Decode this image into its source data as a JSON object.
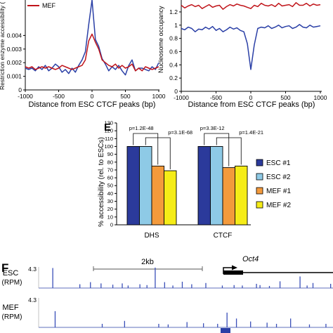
{
  "chart_data": [
    {
      "type": "line",
      "panel": "left-top",
      "xlabel": "Distance from ESC CTCF peaks (bp)",
      "ylabel": "Restriction enzyme accessibility (",
      "xlim": [
        -1000,
        1000
      ],
      "ylim": [
        0,
        0.0066
      ],
      "xticks": [
        "-1000",
        "-500",
        "0",
        "500",
        "1000"
      ],
      "yticks": [
        "0",
        "0.001",
        "0.002",
        "0.003",
        "0.004"
      ],
      "legend": [
        "MEF"
      ],
      "legend_position": "top-left",
      "x": [
        -1000,
        -950,
        -900,
        -850,
        -800,
        -750,
        -700,
        -650,
        -600,
        -550,
        -500,
        -450,
        -400,
        -350,
        -300,
        -250,
        -200,
        -150,
        -100,
        -50,
        0,
        50,
        100,
        150,
        200,
        250,
        300,
        350,
        400,
        450,
        500,
        550,
        600,
        650,
        700,
        750,
        800,
        850,
        900,
        950,
        1000
      ],
      "series": [
        {
          "name": "",
          "color": "#2a3fa6",
          "values": [
            0.0016,
            0.0015,
            0.0016,
            0.0014,
            0.0017,
            0.0015,
            0.0018,
            0.0014,
            0.0016,
            0.0019,
            0.0017,
            0.0013,
            0.0015,
            0.0012,
            0.0016,
            0.0013,
            0.0018,
            0.0022,
            0.0028,
            0.0048,
            0.0066,
            0.0037,
            0.0032,
            0.0023,
            0.0019,
            0.0014,
            0.0017,
            0.0015,
            0.0018,
            0.0014,
            0.0011,
            0.0018,
            0.0022,
            0.0014,
            0.0016,
            0.0016,
            0.0015,
            0.0014,
            0.0017,
            0.0015,
            0.002
          ]
        },
        {
          "name": "MEF",
          "color": "#c0141a",
          "values": [
            0.0017,
            0.0016,
            0.0017,
            0.0015,
            0.0016,
            0.0017,
            0.0016,
            0.0017,
            0.0016,
            0.0015,
            0.0016,
            0.0018,
            0.0017,
            0.0016,
            0.0015,
            0.0016,
            0.0017,
            0.0018,
            0.0022,
            0.0036,
            0.0041,
            0.0035,
            0.003,
            0.0022,
            0.002,
            0.0018,
            0.0017,
            0.0019,
            0.0016,
            0.0018,
            0.0016,
            0.0017,
            0.0019,
            0.0014,
            0.0016,
            0.0014,
            0.0017,
            0.0016,
            0.0015,
            0.0016,
            0.0017
          ]
        }
      ]
    },
    {
      "type": "line",
      "panel": "right-top",
      "xlabel": "Distance from ESC CTCF peaks (bp)",
      "ylabel": "Nucleosome occupancy",
      "xlim": [
        -1000,
        1000
      ],
      "ylim": [
        0,
        1.38
      ],
      "xticks": [
        "-1000",
        "-500",
        "0",
        "500",
        "1000"
      ],
      "yticks": [
        "0",
        "0.2",
        "0.4",
        "0.6",
        "0.8",
        "1",
        "1.2"
      ],
      "x": [
        -1000,
        -950,
        -900,
        -850,
        -800,
        -750,
        -700,
        -650,
        -600,
        -550,
        -500,
        -450,
        -400,
        -350,
        -300,
        -250,
        -200,
        -150,
        -100,
        -50,
        0,
        50,
        100,
        150,
        200,
        250,
        300,
        350,
        400,
        450,
        500,
        550,
        600,
        650,
        700,
        750,
        800,
        850,
        900,
        950,
        1000
      ],
      "series": [
        {
          "name": "",
          "color": "#c0141a",
          "values": [
            1.3,
            1.26,
            1.29,
            1.31,
            1.28,
            1.3,
            1.25,
            1.28,
            1.31,
            1.27,
            1.29,
            1.3,
            1.24,
            1.28,
            1.31,
            1.29,
            1.32,
            1.3,
            1.29,
            1.27,
            1.25,
            1.3,
            1.28,
            1.33,
            1.3,
            1.29,
            1.31,
            1.28,
            1.33,
            1.29,
            1.3,
            1.31,
            1.28,
            1.34,
            1.3,
            1.3,
            1.33,
            1.29,
            1.32,
            1.3,
            1.31
          ]
        },
        {
          "name": "",
          "color": "#2a3fa6",
          "values": [
            0.95,
            0.93,
            0.97,
            0.95,
            0.9,
            0.94,
            0.93,
            0.97,
            0.94,
            0.98,
            0.92,
            0.95,
            0.9,
            0.93,
            0.97,
            0.94,
            0.96,
            0.92,
            0.9,
            0.72,
            0.33,
            0.7,
            0.95,
            0.97,
            0.96,
            0.99,
            0.95,
            0.97,
            1.0,
            0.96,
            0.98,
            0.99,
            0.95,
            0.97,
            1.01,
            0.97,
            0.96,
            1.0,
            0.97,
            0.98,
            0.99
          ]
        }
      ]
    },
    {
      "type": "bar",
      "panel": "E",
      "panel_label": "E",
      "ylabel": "% accessibility (rel. to ESCs)",
      "ylim": [
        0,
        130
      ],
      "yticks": [
        "0",
        "10",
        "20",
        "30",
        "40",
        "50",
        "60",
        "70",
        "80",
        "90",
        "100",
        "110",
        "120",
        "130"
      ],
      "categories": [
        "DHS",
        "CTCF"
      ],
      "series": [
        {
          "name": "ESC #1",
          "color": "#2b3a9b",
          "values": [
            100,
            100
          ]
        },
        {
          "name": "ESC #2",
          "color": "#8ecae6",
          "values": [
            100,
            100
          ]
        },
        {
          "name": "MEF #1",
          "color": "#f39a3c",
          "values": [
            75,
            73
          ]
        },
        {
          "name": "MEF #2",
          "color": "#f5ec17",
          "values": [
            69,
            75
          ]
        }
      ],
      "annotations": [
        "p=1.2E-48",
        "p=3.1E-68",
        "p=3.3E-12",
        "p=1.4E-21"
      ],
      "legend_position": "right"
    }
  ],
  "panel_f": {
    "label": "F",
    "scale_bar": "2kb",
    "gene": "Oct4",
    "tracks": [
      {
        "name": "ESC",
        "unit": "(RPM)",
        "ymax": "4.3",
        "peaks": [
          [
            -3.8,
            0.95
          ],
          [
            -1.5,
            0.18
          ],
          [
            -0.6,
            0.28
          ],
          [
            0.3,
            0.22
          ],
          [
            1.3,
            0.16
          ],
          [
            2.1,
            0.22
          ],
          [
            2.6,
            0.12
          ],
          [
            3.6,
            0.18
          ],
          [
            4.2,
            0.14
          ],
          [
            4.9,
            0.97
          ],
          [
            5.7,
            0.28
          ],
          [
            6.4,
            0.12
          ],
          [
            7.2,
            0.3
          ],
          [
            8.0,
            0.18
          ],
          [
            9.2,
            0.24
          ],
          [
            10.6,
            0.12
          ],
          [
            11.6,
            0.14
          ],
          [
            12.3,
            0.12
          ],
          [
            13.5,
            0.2
          ],
          [
            13.8,
            0.14
          ],
          [
            14.6,
            0.1
          ],
          [
            15.5,
            0.32
          ],
          [
            17.2,
            0.55
          ],
          [
            17.8,
            0.12
          ],
          [
            18.3,
            0.24
          ],
          [
            19.8,
            0.2
          ]
        ]
      },
      {
        "name": "MEF",
        "unit": "(RPM)",
        "ymax": "4.3",
        "peaks": [
          [
            -3.6,
            0.55
          ],
          [
            0.4,
            0.12
          ],
          [
            2.3,
            0.22
          ],
          [
            5.2,
            0.12
          ],
          [
            6.0,
            0.1
          ],
          [
            7.6,
            0.18
          ],
          [
            9.0,
            0.14
          ],
          [
            10.2,
            0.12
          ],
          [
            11.0,
            0.5
          ],
          [
            11.8,
            0.3
          ],
          [
            13.0,
            0.2
          ],
          [
            14.4,
            0.16
          ],
          [
            15.2,
            0.12
          ],
          [
            16.4,
            0.3
          ],
          [
            18.0,
            0.1
          ],
          [
            19.4,
            0.12
          ]
        ]
      }
    ]
  }
}
